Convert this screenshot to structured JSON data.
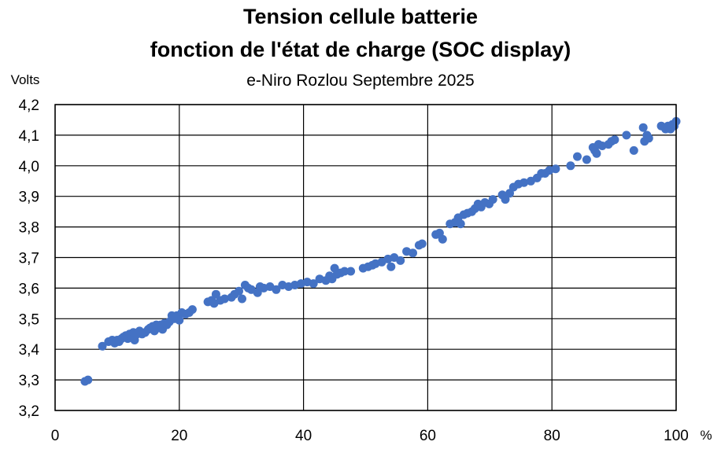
{
  "chart_data": {
    "type": "scatter",
    "title_line1": "Tension cellule batterie",
    "title_line2": "fonction de l'état de charge (SOC display)",
    "subtitle": "e-Niro   Rozlou   Septembre 2025",
    "ylabel": "Volts",
    "xunit": "%",
    "xlim": [
      0,
      100
    ],
    "ylim": [
      3.2,
      4.2
    ],
    "xticks": [
      "0",
      "20",
      "40",
      "60",
      "80",
      "100"
    ],
    "yticks": [
      "3,2",
      "3,3",
      "3,4",
      "3,5",
      "3,6",
      "3,7",
      "3,8",
      "3,9",
      "4,0",
      "4,1",
      "4,2"
    ],
    "grid": true,
    "marker_color": "#4472C4",
    "points": [
      [
        4.8,
        3.295
      ],
      [
        5.3,
        3.3
      ],
      [
        7.6,
        3.41
      ],
      [
        8.6,
        3.425
      ],
      [
        9.2,
        3.43
      ],
      [
        9.6,
        3.42
      ],
      [
        10.0,
        3.43
      ],
      [
        10.3,
        3.425
      ],
      [
        10.7,
        3.435
      ],
      [
        11.0,
        3.44
      ],
      [
        11.4,
        3.445
      ],
      [
        11.7,
        3.435
      ],
      [
        12.0,
        3.45
      ],
      [
        12.3,
        3.44
      ],
      [
        12.6,
        3.455
      ],
      [
        12.8,
        3.43
      ],
      [
        13.2,
        3.45
      ],
      [
        13.6,
        3.46
      ],
      [
        14.0,
        3.45
      ],
      [
        14.5,
        3.455
      ],
      [
        15.0,
        3.465
      ],
      [
        15.3,
        3.47
      ],
      [
        15.7,
        3.475
      ],
      [
        16.0,
        3.46
      ],
      [
        16.3,
        3.48
      ],
      [
        16.6,
        3.47
      ],
      [
        17.0,
        3.48
      ],
      [
        17.3,
        3.465
      ],
      [
        17.6,
        3.485
      ],
      [
        18.0,
        3.48
      ],
      [
        18.4,
        3.49
      ],
      [
        18.8,
        3.51
      ],
      [
        19.2,
        3.5
      ],
      [
        19.6,
        3.51
      ],
      [
        20.0,
        3.495
      ],
      [
        20.4,
        3.52
      ],
      [
        21.0,
        3.515
      ],
      [
        21.6,
        3.52
      ],
      [
        22.1,
        3.53
      ],
      [
        24.6,
        3.555
      ],
      [
        25.2,
        3.56
      ],
      [
        25.6,
        3.55
      ],
      [
        25.9,
        3.58
      ],
      [
        26.6,
        3.56
      ],
      [
        27.3,
        3.565
      ],
      [
        28.4,
        3.57
      ],
      [
        28.9,
        3.58
      ],
      [
        29.6,
        3.59
      ],
      [
        30.1,
        3.565
      ],
      [
        30.6,
        3.61
      ],
      [
        31.1,
        3.6
      ],
      [
        31.6,
        3.595
      ],
      [
        32.6,
        3.585
      ],
      [
        33.0,
        3.605
      ],
      [
        33.6,
        3.6
      ],
      [
        34.6,
        3.605
      ],
      [
        35.6,
        3.595
      ],
      [
        36.6,
        3.61
      ],
      [
        37.6,
        3.605
      ],
      [
        38.6,
        3.61
      ],
      [
        39.6,
        3.615
      ],
      [
        40.6,
        3.62
      ],
      [
        41.6,
        3.615
      ],
      [
        42.6,
        3.63
      ],
      [
        43.6,
        3.625
      ],
      [
        44.2,
        3.64
      ],
      [
        44.6,
        3.63
      ],
      [
        45.0,
        3.665
      ],
      [
        45.4,
        3.645
      ],
      [
        46.0,
        3.65
      ],
      [
        46.6,
        3.655
      ],
      [
        47.6,
        3.655
      ],
      [
        49.6,
        3.665
      ],
      [
        50.4,
        3.67
      ],
      [
        51.1,
        3.675
      ],
      [
        51.6,
        3.68
      ],
      [
        52.6,
        3.685
      ],
      [
        53.6,
        3.695
      ],
      [
        54.1,
        3.67
      ],
      [
        54.6,
        3.7
      ],
      [
        55.6,
        3.69
      ],
      [
        56.6,
        3.72
      ],
      [
        57.6,
        3.715
      ],
      [
        58.6,
        3.74
      ],
      [
        59.1,
        3.745
      ],
      [
        61.3,
        3.775
      ],
      [
        61.9,
        3.78
      ],
      [
        62.4,
        3.76
      ],
      [
        63.6,
        3.81
      ],
      [
        64.4,
        3.815
      ],
      [
        64.9,
        3.83
      ],
      [
        65.3,
        3.81
      ],
      [
        65.8,
        3.84
      ],
      [
        66.4,
        3.845
      ],
      [
        67.1,
        3.85
      ],
      [
        67.6,
        3.86
      ],
      [
        68.1,
        3.875
      ],
      [
        68.6,
        3.865
      ],
      [
        69.2,
        3.88
      ],
      [
        69.9,
        3.875
      ],
      [
        70.5,
        3.89
      ],
      [
        72.0,
        3.905
      ],
      [
        72.5,
        3.89
      ],
      [
        73.2,
        3.91
      ],
      [
        73.8,
        3.93
      ],
      [
        74.6,
        3.94
      ],
      [
        75.5,
        3.945
      ],
      [
        76.6,
        3.95
      ],
      [
        77.6,
        3.96
      ],
      [
        78.3,
        3.975
      ],
      [
        78.9,
        3.975
      ],
      [
        79.6,
        3.985
      ],
      [
        80.6,
        3.99
      ],
      [
        83.0,
        4.0
      ],
      [
        84.1,
        4.03
      ],
      [
        85.6,
        4.02
      ],
      [
        86.6,
        4.06
      ],
      [
        86.9,
        4.05
      ],
      [
        87.2,
        4.04
      ],
      [
        87.5,
        4.07
      ],
      [
        88.1,
        4.065
      ],
      [
        89.1,
        4.07
      ],
      [
        89.6,
        4.08
      ],
      [
        90.1,
        4.085
      ],
      [
        92.0,
        4.1
      ],
      [
        93.2,
        4.05
      ],
      [
        94.7,
        4.125
      ],
      [
        94.9,
        4.08
      ],
      [
        95.3,
        4.1
      ],
      [
        95.6,
        4.09
      ],
      [
        97.6,
        4.13
      ],
      [
        98.3,
        4.12
      ],
      [
        98.7,
        4.13
      ],
      [
        99.1,
        4.12
      ],
      [
        99.4,
        4.135
      ],
      [
        99.7,
        4.13
      ],
      [
        100.0,
        4.145
      ]
    ]
  }
}
